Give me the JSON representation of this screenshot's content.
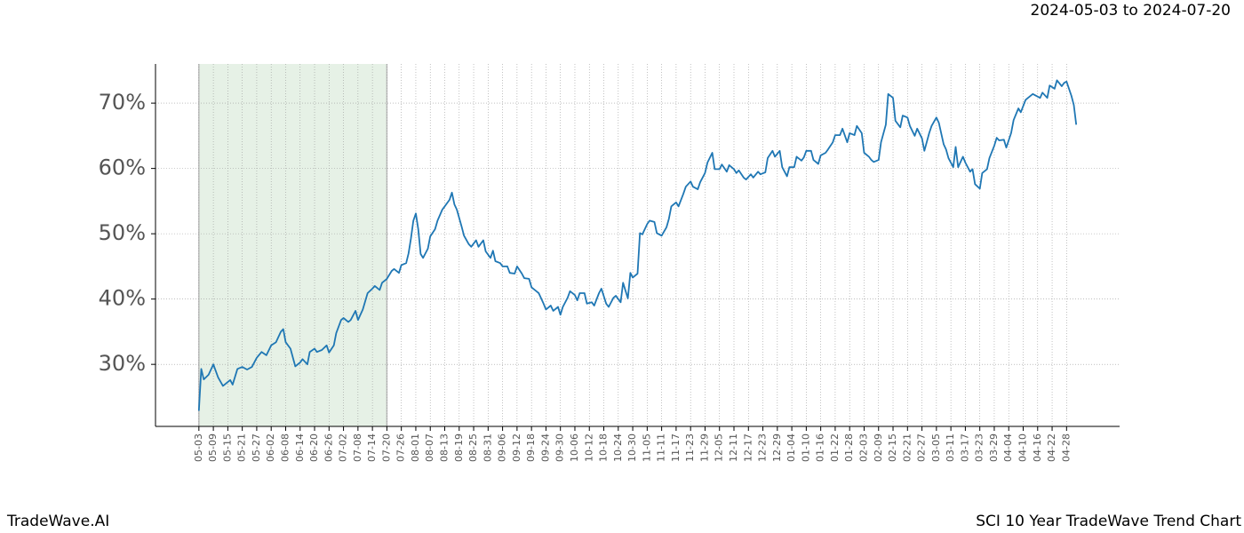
{
  "date_range": "2024-05-03 to 2024-07-20",
  "footer_left": "TradeWave.AI",
  "footer_right": "SCI 10 Year TradeWave Trend Chart",
  "chart_data": {
    "type": "line",
    "xlim": [
      -18,
      382
    ],
    "ylim": [
      20.5,
      76
    ],
    "grid": true,
    "shaded_range": [
      0,
      78
    ],
    "shade_color": "#e6f1e6",
    "yticks": [
      {
        "value": 30,
        "label": "30%"
      },
      {
        "value": 40,
        "label": "40%"
      },
      {
        "value": 50,
        "label": "50%"
      },
      {
        "value": 60,
        "label": "60%"
      },
      {
        "value": 70,
        "label": "70%"
      }
    ],
    "xticks": [
      {
        "value": 0,
        "label": "05-03"
      },
      {
        "value": 6,
        "label": "05-09"
      },
      {
        "value": 12,
        "label": "05-15"
      },
      {
        "value": 18,
        "label": "05-21"
      },
      {
        "value": 24,
        "label": "05-27"
      },
      {
        "value": 30,
        "label": "06-02"
      },
      {
        "value": 36,
        "label": "06-08"
      },
      {
        "value": 42,
        "label": "06-14"
      },
      {
        "value": 48,
        "label": "06-20"
      },
      {
        "value": 54,
        "label": "06-26"
      },
      {
        "value": 60,
        "label": "07-02"
      },
      {
        "value": 66,
        "label": "07-08"
      },
      {
        "value": 72,
        "label": "07-14"
      },
      {
        "value": 78,
        "label": "07-20"
      },
      {
        "value": 84,
        "label": "07-26"
      },
      {
        "value": 90,
        "label": "08-01"
      },
      {
        "value": 96,
        "label": "08-07"
      },
      {
        "value": 102,
        "label": "08-13"
      },
      {
        "value": 108,
        "label": "08-19"
      },
      {
        "value": 114,
        "label": "08-25"
      },
      {
        "value": 120,
        "label": "08-31"
      },
      {
        "value": 126,
        "label": "09-06"
      },
      {
        "value": 132,
        "label": "09-12"
      },
      {
        "value": 138,
        "label": "09-18"
      },
      {
        "value": 144,
        "label": "09-24"
      },
      {
        "value": 150,
        "label": "09-30"
      },
      {
        "value": 156,
        "label": "10-06"
      },
      {
        "value": 162,
        "label": "10-12"
      },
      {
        "value": 168,
        "label": "10-18"
      },
      {
        "value": 174,
        "label": "10-24"
      },
      {
        "value": 180,
        "label": "10-30"
      },
      {
        "value": 186,
        "label": "11-05"
      },
      {
        "value": 192,
        "label": "11-11"
      },
      {
        "value": 198,
        "label": "11-17"
      },
      {
        "value": 204,
        "label": "11-23"
      },
      {
        "value": 210,
        "label": "11-29"
      },
      {
        "value": 216,
        "label": "12-05"
      },
      {
        "value": 222,
        "label": "12-11"
      },
      {
        "value": 228,
        "label": "12-17"
      },
      {
        "value": 234,
        "label": "12-23"
      },
      {
        "value": 240,
        "label": "12-29"
      },
      {
        "value": 246,
        "label": "01-04"
      },
      {
        "value": 252,
        "label": "01-10"
      },
      {
        "value": 258,
        "label": "01-16"
      },
      {
        "value": 264,
        "label": "01-22"
      },
      {
        "value": 270,
        "label": "01-28"
      },
      {
        "value": 276,
        "label": "02-03"
      },
      {
        "value": 282,
        "label": "02-09"
      },
      {
        "value": 288,
        "label": "02-15"
      },
      {
        "value": 294,
        "label": "02-21"
      },
      {
        "value": 300,
        "label": "02-27"
      },
      {
        "value": 306,
        "label": "03-05"
      },
      {
        "value": 312,
        "label": "03-11"
      },
      {
        "value": 318,
        "label": "03-17"
      },
      {
        "value": 324,
        "label": "03-23"
      },
      {
        "value": 330,
        "label": "03-29"
      },
      {
        "value": 336,
        "label": "04-04"
      },
      {
        "value": 342,
        "label": "04-10"
      },
      {
        "value": 348,
        "label": "04-16"
      },
      {
        "value": 354,
        "label": "04-22"
      },
      {
        "value": 360,
        "label": "04-28"
      }
    ],
    "series": [
      {
        "color": "#1f77b4",
        "x": [
          0,
          1,
          2,
          4,
          6,
          8,
          10,
          11,
          13,
          14,
          16,
          18,
          20,
          22,
          24,
          26,
          28,
          30,
          32,
          34,
          35,
          36,
          38,
          40,
          42,
          43,
          45,
          46,
          48,
          49,
          51,
          53,
          54,
          56,
          57,
          59,
          60,
          62,
          63,
          65,
          66,
          68,
          70,
          72,
          73,
          75,
          76,
          78,
          80,
          81,
          83,
          84,
          86,
          87,
          88,
          89,
          90,
          91,
          92,
          93,
          95,
          96,
          98,
          99,
          101,
          102,
          104,
          105,
          106,
          107,
          109,
          110,
          112,
          113,
          115,
          116,
          118,
          119,
          121,
          122,
          123,
          125,
          126,
          128,
          129,
          131,
          132,
          134,
          135,
          137,
          138,
          140,
          141,
          143,
          144,
          146,
          147,
          149,
          150,
          151,
          153,
          154,
          156,
          157,
          158,
          160,
          161,
          163,
          164,
          166,
          167,
          169,
          170,
          172,
          173,
          175,
          176,
          178,
          179,
          180,
          182,
          183,
          184,
          186,
          187,
          189,
          190,
          192,
          194,
          195,
          196,
          198,
          199,
          201,
          202,
          204,
          205,
          207,
          208,
          210,
          211,
          213,
          214,
          216,
          217,
          219,
          220,
          222,
          223,
          224,
          226,
          227,
          229,
          230,
          232,
          233,
          235,
          236,
          238,
          239,
          241,
          242,
          244,
          245,
          247,
          248,
          250,
          251,
          252,
          254,
          255,
          257,
          258,
          260,
          261,
          263,
          264,
          266,
          267,
          269,
          270,
          272,
          273,
          275,
          276,
          278,
          279,
          280,
          282,
          283,
          285,
          286,
          288,
          289,
          291,
          292,
          294,
          295,
          297,
          298,
          300,
          301,
          303,
          304,
          306,
          307,
          309,
          310,
          311,
          313,
          314,
          315,
          317,
          318,
          320,
          321,
          322,
          324,
          325,
          327,
          328,
          330,
          331,
          332,
          334,
          335,
          337,
          338,
          340,
          341,
          343,
          344,
          346,
          347,
          349,
          350,
          352,
          353,
          355,
          356,
          358,
          359,
          360,
          362,
          363,
          364
        ],
        "values": [
          22.9,
          29.3,
          27.7,
          28.4,
          30.0,
          28.0,
          26.7,
          27.0,
          27.6,
          26.9,
          29.3,
          29.6,
          29.2,
          29.6,
          31.0,
          31.9,
          31.4,
          32.9,
          33.4,
          35.0,
          35.4,
          33.4,
          32.4,
          29.7,
          30.3,
          30.8,
          30.0,
          31.9,
          32.4,
          31.9,
          32.2,
          32.9,
          31.8,
          32.9,
          34.8,
          36.8,
          37.1,
          36.5,
          36.8,
          38.2,
          36.8,
          38.4,
          40.9,
          41.6,
          42.0,
          41.4,
          42.5,
          43.1,
          44.3,
          44.6,
          44.0,
          45.2,
          45.5,
          47.0,
          49.3,
          52.0,
          53.1,
          50.7,
          46.9,
          46.3,
          47.7,
          49.6,
          50.7,
          52.0,
          53.7,
          54.2,
          55.2,
          56.3,
          54.5,
          53.7,
          51.1,
          49.7,
          48.4,
          48.0,
          49.0,
          48.0,
          49.0,
          47.3,
          46.3,
          47.4,
          45.8,
          45.5,
          45.0,
          45.0,
          44.0,
          43.9,
          45.0,
          43.9,
          43.2,
          43.1,
          41.8,
          41.2,
          40.9,
          39.3,
          38.4,
          39.0,
          38.2,
          38.8,
          37.6,
          38.8,
          40.2,
          41.2,
          40.6,
          39.8,
          40.9,
          40.9,
          39.3,
          39.5,
          39.0,
          40.9,
          41.6,
          39.3,
          38.8,
          40.2,
          40.5,
          39.5,
          42.5,
          40.1,
          44.0,
          43.3,
          43.9,
          50.1,
          49.9,
          51.5,
          52.0,
          51.8,
          50.1,
          49.7,
          51.0,
          52.3,
          54.2,
          54.8,
          54.2,
          56.1,
          57.2,
          58.0,
          57.2,
          56.8,
          57.9,
          59.3,
          60.9,
          62.4,
          59.9,
          59.9,
          60.6,
          59.5,
          60.5,
          59.9,
          59.3,
          59.7,
          58.6,
          58.3,
          59.1,
          58.6,
          59.5,
          59.1,
          59.4,
          61.6,
          62.7,
          61.8,
          62.7,
          60.2,
          58.8,
          60.2,
          60.2,
          61.8,
          61.2,
          61.7,
          62.7,
          62.7,
          61.3,
          60.7,
          62.0,
          62.4,
          62.9,
          64.0,
          65.1,
          65.1,
          66.1,
          64.0,
          65.4,
          65.1,
          66.5,
          65.4,
          62.4,
          61.8,
          61.3,
          61.0,
          61.3,
          64.0,
          66.7,
          71.4,
          70.8,
          67.3,
          66.3,
          68.1,
          67.8,
          66.5,
          65.0,
          66.1,
          64.6,
          62.7,
          65.4,
          66.5,
          67.8,
          67.0,
          63.7,
          62.9,
          61.6,
          60.2,
          63.3,
          60.2,
          61.8,
          60.9,
          59.5,
          59.9,
          57.6,
          56.9,
          59.3,
          59.9,
          61.6,
          63.5,
          64.7,
          64.3,
          64.4,
          63.2,
          65.4,
          67.4,
          69.2,
          68.6,
          70.5,
          70.8,
          71.4,
          71.2,
          70.8,
          71.6,
          70.8,
          72.7,
          72.2,
          73.5,
          72.6,
          73.1,
          73.3,
          71.1,
          69.7,
          66.7
        ]
      }
    ]
  }
}
